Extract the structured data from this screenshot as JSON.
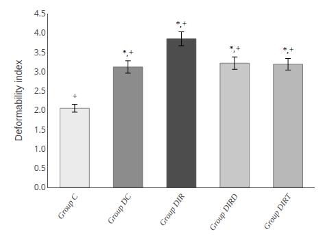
{
  "chart_data": {
    "type": "bar",
    "categories": [
      "Group C",
      "Group DC",
      "Group DIR",
      "Group DIRD",
      "Group DIRT"
    ],
    "values": [
      2.05,
      3.12,
      3.85,
      3.22,
      3.19
    ],
    "errors": [
      0.1,
      0.16,
      0.18,
      0.16,
      0.15
    ],
    "colors": [
      "#ebebeb",
      "#8c8c8c",
      "#4d4d4d",
      "#c8c8c8",
      "#b8b8b8"
    ],
    "annotations": [
      "+",
      "*,+",
      "*,+",
      "*,+",
      "*,+"
    ],
    "ylabel": "Deformability index",
    "ylim": [
      0,
      4.5
    ],
    "yticks": [
      {
        "value": 0,
        "label": "0.0"
      },
      0.5,
      {
        "value": 1,
        "label": "1.0"
      },
      1.5,
      {
        "value": 2,
        "label": "2.0"
      },
      2.5,
      {
        "value": 3,
        "label": "3.0"
      },
      3.5,
      {
        "value": 4,
        "label": "4.0"
      },
      4.5
    ],
    "grid": false
  }
}
